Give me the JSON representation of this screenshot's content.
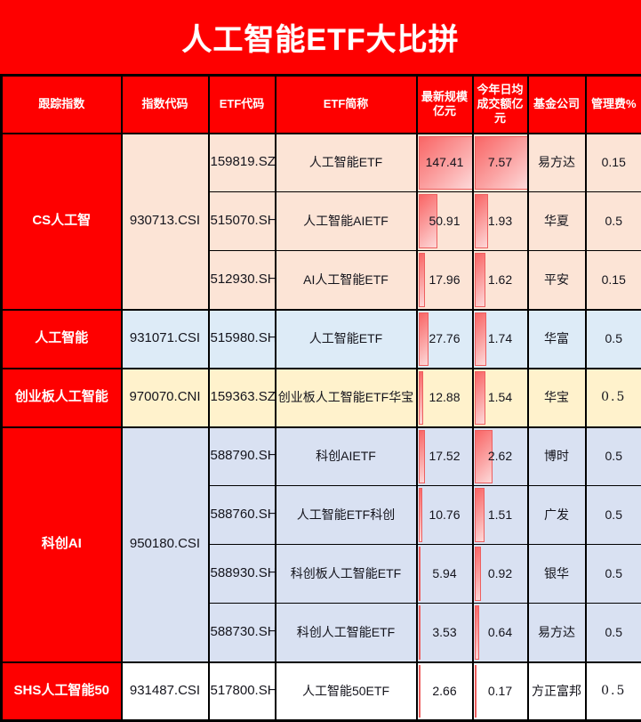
{
  "title": "人工智能ETF大比拼",
  "colors": {
    "accent_red": "#fe0000",
    "grid_border": "#000000",
    "bar_border": "#ee5f5f",
    "bar_fill_start": "#f96565",
    "bar_fill_end": "#fdd9d9",
    "group_peach": "#fce4d6",
    "group_blue": "#ddebf7",
    "group_yellow": "#fff2cc",
    "group_lavender": "#d9e1f2",
    "group_white": "#ffffff"
  },
  "table": {
    "headers": [
      "跟踪指数",
      "指数代码",
      "ETF代码",
      "ETF简称",
      "最新规模亿元",
      "今年日均成交额亿元",
      "基金公司",
      "管理费%"
    ],
    "scale_max": 147.41,
    "turnover_max": 7.57,
    "groups": [
      {
        "index_name": "CS人工智",
        "index_code": "930713.CSI",
        "bg": "#fce4d6",
        "rows": [
          {
            "etf_code": "159819.SZ",
            "etf_name": "人工智能ETF",
            "scale": 147.41,
            "turnover": 7.57,
            "company": "易方达",
            "fee": "0.15",
            "fee_alt": false
          },
          {
            "etf_code": "515070.SH",
            "etf_name": "人工智能AIETF",
            "scale": 50.91,
            "turnover": 1.93,
            "company": "华夏",
            "fee": "0.5",
            "fee_alt": false
          },
          {
            "etf_code": "512930.SH",
            "etf_name": "AI人工智能ETF",
            "scale": 17.96,
            "turnover": 1.62,
            "company": "平安",
            "fee": "0.15",
            "fee_alt": false
          }
        ]
      },
      {
        "index_name": "人工智能",
        "index_code": "931071.CSI",
        "bg": "#ddebf7",
        "rows": [
          {
            "etf_code": "515980.SH",
            "etf_name": "人工智能ETF",
            "scale": 27.76,
            "turnover": 1.74,
            "company": "华富",
            "fee": "0.5",
            "fee_alt": false
          }
        ]
      },
      {
        "index_name": "创业板人工智能",
        "index_code": "970070.CNI",
        "bg": "#fff2cc",
        "rows": [
          {
            "etf_code": "159363.SZ",
            "etf_name": "创业板人工智能ETF华宝",
            "scale": 12.88,
            "turnover": 1.54,
            "company": "华宝",
            "fee": "0.5",
            "fee_alt": true
          }
        ]
      },
      {
        "index_name": "科创AI",
        "index_code": "950180.CSI",
        "bg": "#d9e1f2",
        "rows": [
          {
            "etf_code": "588790.SH",
            "etf_name": "科创AIETF",
            "scale": 17.52,
            "turnover": 2.62,
            "company": "博时",
            "fee": "0.5",
            "fee_alt": false
          },
          {
            "etf_code": "588760.SH",
            "etf_name": "人工智能ETF科创",
            "scale": 10.76,
            "turnover": 1.51,
            "company": "广发",
            "fee": "0.5",
            "fee_alt": false
          },
          {
            "etf_code": "588930.SH",
            "etf_name": "科创板人工智能ETF",
            "scale": 5.94,
            "turnover": 0.92,
            "company": "银华",
            "fee": "0.5",
            "fee_alt": false
          },
          {
            "etf_code": "588730.SH",
            "etf_name": "科创人工智能ETF",
            "scale": 3.53,
            "turnover": 0.64,
            "company": "易方达",
            "fee": "0.5",
            "fee_alt": false
          }
        ]
      },
      {
        "index_name": "SHS人工智能50",
        "index_code": "931487.CSI",
        "bg": "#ffffff",
        "rows": [
          {
            "etf_code": "517800.SH",
            "etf_name": "人工智能50ETF",
            "scale": 2.66,
            "turnover": 0.17,
            "company": "方正富邦",
            "fee": "0.5",
            "fee_alt": true
          }
        ]
      }
    ]
  },
  "chart_data": {
    "type": "table",
    "title": "人工智能ETF大比拼",
    "columns": [
      "跟踪指数",
      "指数代码",
      "ETF代码",
      "ETF简称",
      "最新规模亿元",
      "今年日均成交额亿元",
      "基金公司",
      "管理费%"
    ],
    "rows": [
      [
        "CS人工智",
        "930713.CSI",
        "159819.SZ",
        "人工智能ETF",
        147.41,
        7.57,
        "易方达",
        0.15
      ],
      [
        "CS人工智",
        "930713.CSI",
        "515070.SH",
        "人工智能AIETF",
        50.91,
        1.93,
        "华夏",
        0.5
      ],
      [
        "CS人工智",
        "930713.CSI",
        "512930.SH",
        "AI人工智能ETF",
        17.96,
        1.62,
        "平安",
        0.15
      ],
      [
        "人工智能",
        "931071.CSI",
        "515980.SH",
        "人工智能ETF",
        27.76,
        1.74,
        "华富",
        0.5
      ],
      [
        "创业板人工智能",
        "970070.CNI",
        "159363.SZ",
        "创业板人工智能ETF华宝",
        12.88,
        1.54,
        "华宝",
        0.5
      ],
      [
        "科创AI",
        "950180.CSI",
        "588790.SH",
        "科创AIETF",
        17.52,
        2.62,
        "博时",
        0.5
      ],
      [
        "科创AI",
        "950180.CSI",
        "588760.SH",
        "人工智能ETF科创",
        10.76,
        1.51,
        "广发",
        0.5
      ],
      [
        "科创AI",
        "950180.CSI",
        "588930.SH",
        "科创板人工智能ETF",
        5.94,
        0.92,
        "银华",
        0.5
      ],
      [
        "科创AI",
        "950180.CSI",
        "588730.SH",
        "科创人工智能ETF",
        3.53,
        0.64,
        "易方达",
        0.5
      ],
      [
        "SHS人工智能50",
        "931487.CSI",
        "517800.SH",
        "人工智能50ETF",
        2.66,
        0.17,
        "方正富邦",
        0.5
      ]
    ],
    "data_bars": {
      "最新规模亿元": {
        "max": 147.41,
        "style": "red-gradient"
      },
      "今年日均成交额亿元": {
        "max": 7.57,
        "style": "red-gradient"
      }
    },
    "layout": {
      "grid": true,
      "header_bg": "#fe0000",
      "group_column_bg": "#fe0000"
    }
  }
}
